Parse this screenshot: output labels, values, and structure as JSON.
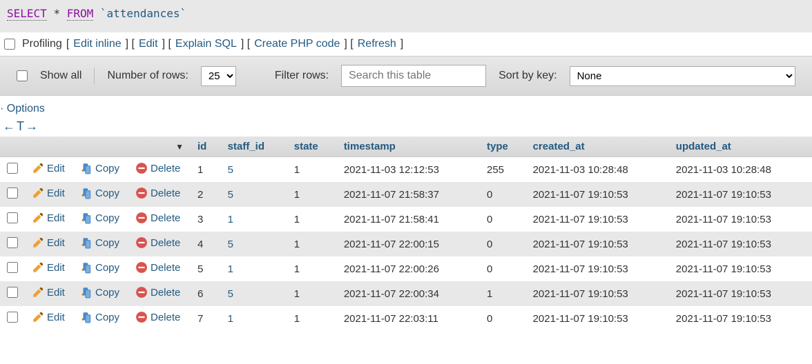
{
  "sql": {
    "select": "SELECT",
    "star": "*",
    "from": "FROM",
    "backtick": "`",
    "table": "attendances"
  },
  "profiling": {
    "label": "Profiling",
    "edit_inline": "Edit inline",
    "edit": "Edit",
    "explain": "Explain SQL",
    "create_php": "Create PHP code",
    "refresh": "Refresh"
  },
  "controls": {
    "show_all": "Show all",
    "num_rows_label": "Number of rows:",
    "num_rows_value": "25",
    "filter_label": "Filter rows:",
    "filter_placeholder": "Search this table",
    "sort_label": "Sort by key:",
    "sort_value": "None"
  },
  "options_label": "Options",
  "columns": {
    "id": "id",
    "staff_id": "staff_id",
    "state": "state",
    "timestamp": "timestamp",
    "type": "type",
    "created_at": "created_at",
    "updated_at": "updated_at"
  },
  "actions": {
    "edit": "Edit",
    "copy": "Copy",
    "delete": "Delete"
  },
  "rows": [
    {
      "id": "1",
      "staff_id": "5",
      "state": "1",
      "timestamp": "2021-11-03 12:12:53",
      "type": "255",
      "created_at": "2021-11-03 10:28:48",
      "updated_at": "2021-11-03 10:28:48"
    },
    {
      "id": "2",
      "staff_id": "5",
      "state": "1",
      "timestamp": "2021-11-07 21:58:37",
      "type": "0",
      "created_at": "2021-11-07 19:10:53",
      "updated_at": "2021-11-07 19:10:53"
    },
    {
      "id": "3",
      "staff_id": "1",
      "state": "1",
      "timestamp": "2021-11-07 21:58:41",
      "type": "0",
      "created_at": "2021-11-07 19:10:53",
      "updated_at": "2021-11-07 19:10:53"
    },
    {
      "id": "4",
      "staff_id": "5",
      "state": "1",
      "timestamp": "2021-11-07 22:00:15",
      "type": "0",
      "created_at": "2021-11-07 19:10:53",
      "updated_at": "2021-11-07 19:10:53"
    },
    {
      "id": "5",
      "staff_id": "1",
      "state": "1",
      "timestamp": "2021-11-07 22:00:26",
      "type": "0",
      "created_at": "2021-11-07 19:10:53",
      "updated_at": "2021-11-07 19:10:53"
    },
    {
      "id": "6",
      "staff_id": "5",
      "state": "1",
      "timestamp": "2021-11-07 22:00:34",
      "type": "1",
      "created_at": "2021-11-07 19:10:53",
      "updated_at": "2021-11-07 19:10:53"
    },
    {
      "id": "7",
      "staff_id": "1",
      "state": "1",
      "timestamp": "2021-11-07 22:03:11",
      "type": "0",
      "created_at": "2021-11-07 19:10:53",
      "updated_at": "2021-11-07 19:10:53"
    }
  ],
  "colors": {
    "link": "#235a81",
    "keyword": "#8a0f9e",
    "header_bg_top": "#e4e4e4",
    "header_bg_bot": "#d6d6d6",
    "row_even": "#e8e8e8",
    "row_odd": "#ffffff"
  }
}
